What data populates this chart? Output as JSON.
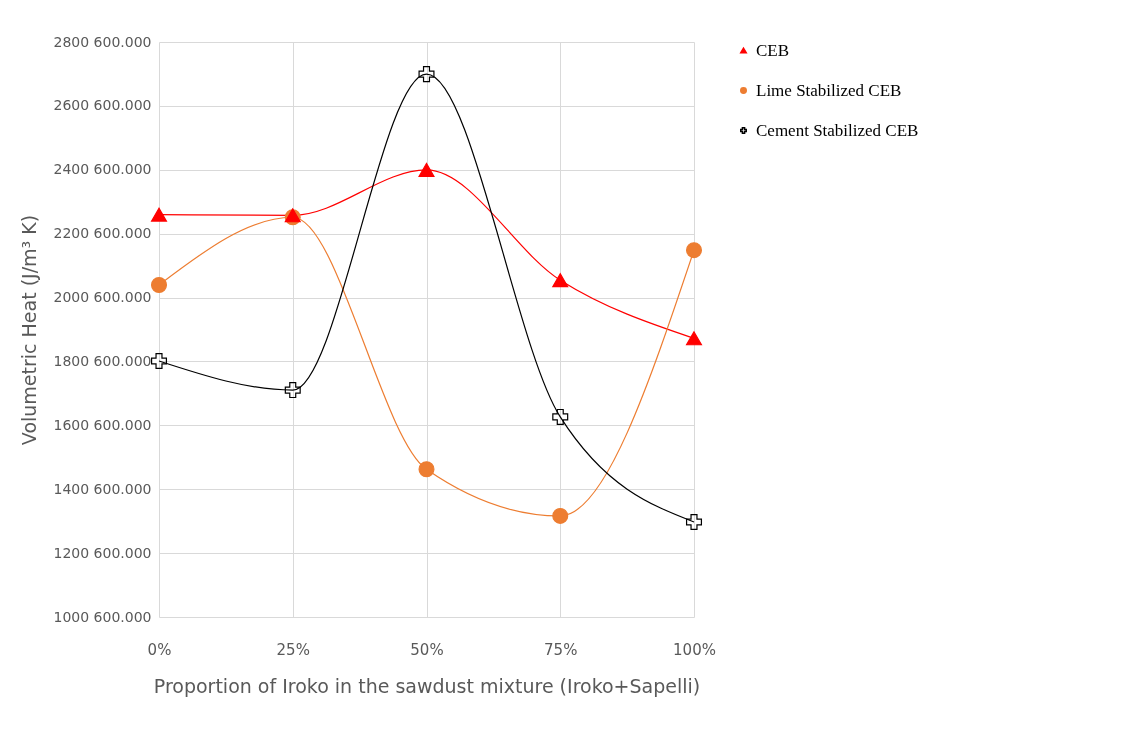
{
  "chart_data": {
    "type": "line",
    "xlabel": "Proportion of Iroko in the sawdust mixture (Iroko+Sapelli)",
    "ylabel": "Volumetric Heat (J/m³ K)",
    "categories": [
      "0%",
      "25%",
      "50%",
      "75%",
      "100%"
    ],
    "ylim": [
      1000600,
      2800600
    ],
    "yticks": [
      {
        "value": 1000600,
        "label": "1000 600.000"
      },
      {
        "value": 1200600,
        "label": "1200 600.000"
      },
      {
        "value": 1400600,
        "label": "1400 600.000"
      },
      {
        "value": 1600600,
        "label": "1600 600.000"
      },
      {
        "value": 1800600,
        "label": "1800 600.000"
      },
      {
        "value": 2000600,
        "label": "2000 600.000"
      },
      {
        "value": 2200600,
        "label": "2200 600.000"
      },
      {
        "value": 2400600,
        "label": "2400 600.000"
      },
      {
        "value": 2600600,
        "label": "2600 600.000"
      },
      {
        "value": 2800600,
        "label": "2800 600.000"
      }
    ],
    "grid": true,
    "legend": "right",
    "series": [
      {
        "name": "CEB",
        "color": "#ff0000",
        "marker": "triangle",
        "values": [
          2260000,
          2258000,
          2400000,
          2055000,
          1873000
        ]
      },
      {
        "name": "Lime Stabilized CEB",
        "color": "#ed7d31",
        "marker": "circle",
        "values": [
          2040000,
          2252000,
          1463000,
          1317000,
          2149000
        ]
      },
      {
        "name": "Cement Stabilized CEB",
        "color": "#000000",
        "marker": "cross",
        "values": [
          1802000,
          1711000,
          2700000,
          1627000,
          1298000
        ]
      }
    ]
  }
}
